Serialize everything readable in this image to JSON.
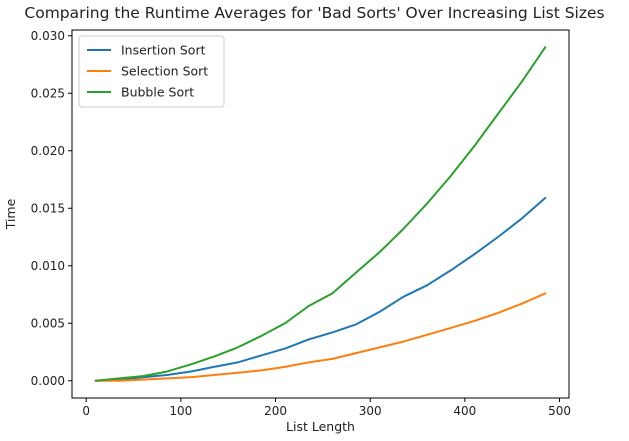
{
  "chart_data": {
    "type": "line",
    "title": "Comparing the Runtime Averages for 'Bad Sorts' Over Increasing List Sizes",
    "xlabel": "List Length",
    "ylabel": "Time",
    "xlim": [
      -15,
      510
    ],
    "ylim": [
      -0.0015,
      0.0305
    ],
    "xticks": [
      0,
      100,
      200,
      300,
      400,
      500
    ],
    "yticks": [
      0.0,
      0.005,
      0.01,
      0.015,
      0.02,
      0.025,
      0.03
    ],
    "ytick_labels": [
      "0.000",
      "0.005",
      "0.010",
      "0.015",
      "0.020",
      "0.025",
      "0.030"
    ],
    "grid": false,
    "legend_position": "top-left",
    "x": [
      10,
      35,
      60,
      85,
      110,
      135,
      160,
      185,
      210,
      235,
      260,
      285,
      310,
      335,
      360,
      385,
      410,
      435,
      460,
      485
    ],
    "series": [
      {
        "name": "Insertion Sort",
        "color": "#1f77b4",
        "values": [
          0.0,
          0.0001,
          0.0003,
          0.0005,
          0.0008,
          0.0012,
          0.0016,
          0.0022,
          0.0028,
          0.0036,
          0.0042,
          0.0049,
          0.006,
          0.0073,
          0.0083,
          0.0096,
          0.011,
          0.0125,
          0.0141,
          0.0159
        ]
      },
      {
        "name": "Selection Sort",
        "color": "#ff7f0e",
        "values": [
          0.0,
          0.0,
          0.0001,
          0.0002,
          0.0003,
          0.0005,
          0.0007,
          0.0009,
          0.0012,
          0.0016,
          0.0019,
          0.0024,
          0.0029,
          0.0034,
          0.004,
          0.0046,
          0.0052,
          0.0059,
          0.0067,
          0.0076
        ]
      },
      {
        "name": "Bubble Sort",
        "color": "#2ca02c",
        "values": [
          0.0,
          0.0002,
          0.0004,
          0.0008,
          0.0014,
          0.0021,
          0.0029,
          0.0039,
          0.005,
          0.0065,
          0.0076,
          0.0094,
          0.0112,
          0.0132,
          0.0154,
          0.0178,
          0.0204,
          0.0232,
          0.026,
          0.029
        ]
      }
    ]
  }
}
